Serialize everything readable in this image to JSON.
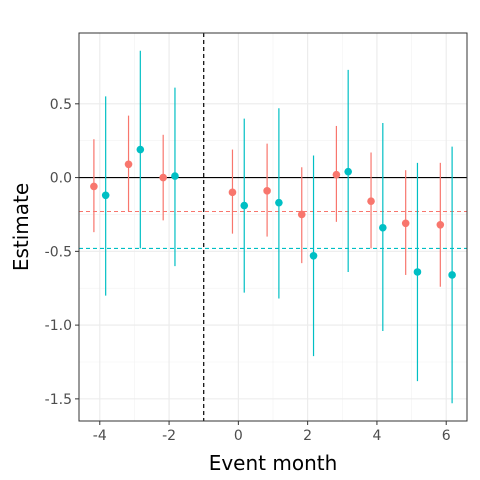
{
  "chart_data": {
    "type": "scatter",
    "subtype": "coefficient plot with 95% confidence intervals",
    "title": "",
    "xlabel": "Event month",
    "ylabel": "Estimate",
    "xlim": [
      -4.6,
      6.6
    ],
    "ylim": [
      -1.65,
      0.98
    ],
    "x_ticks": [
      -4,
      -2,
      0,
      2,
      4,
      6
    ],
    "x_tick_labels": [
      "-4",
      "-2",
      "0",
      "2",
      "4",
      "6"
    ],
    "y_ticks": [
      -1.5,
      -1.0,
      -0.5,
      0.0,
      0.5
    ],
    "y_tick_labels": [
      "-1.5",
      "-1.0",
      "-0.5",
      "0.0",
      "0.5"
    ],
    "grid": true,
    "legend": "none",
    "reference_lines": {
      "horizontal_zero": {
        "y": 0.0,
        "color": "#000000",
        "style": "solid"
      },
      "vertical_event": {
        "x": -1,
        "color": "#000000",
        "style": "dashed"
      }
    },
    "series": [
      {
        "color": "#F8766D",
        "mean_line": -0.23,
        "x": [
          -4,
          -3,
          -2,
          0,
          1,
          2,
          3,
          4,
          5,
          6
        ],
        "estimate": [
          -0.06,
          0.09,
          0.0,
          -0.1,
          -0.09,
          -0.25,
          0.02,
          -0.16,
          -0.31,
          -0.32
        ],
        "ci_low": [
          -0.37,
          -0.23,
          -0.29,
          -0.38,
          -0.4,
          -0.58,
          -0.3,
          -0.48,
          -0.66,
          -0.74
        ],
        "ci_high": [
          0.26,
          0.42,
          0.29,
          0.19,
          0.23,
          0.07,
          0.35,
          0.17,
          0.05,
          0.1
        ]
      },
      {
        "color": "#00BFC4",
        "mean_line": -0.48,
        "x": [
          -4,
          -3,
          -2,
          0,
          1,
          2,
          3,
          4,
          5,
          6
        ],
        "estimate": [
          -0.12,
          0.19,
          0.01,
          -0.19,
          -0.17,
          -0.53,
          0.04,
          -0.34,
          -0.64,
          -0.66
        ],
        "ci_low": [
          -0.8,
          -0.48,
          -0.6,
          -0.78,
          -0.82,
          -1.21,
          -0.64,
          -1.04,
          -1.38,
          -1.53
        ],
        "ci_high": [
          0.55,
          0.86,
          0.61,
          0.4,
          0.47,
          0.15,
          0.73,
          0.37,
          0.1,
          0.21
        ]
      }
    ]
  }
}
